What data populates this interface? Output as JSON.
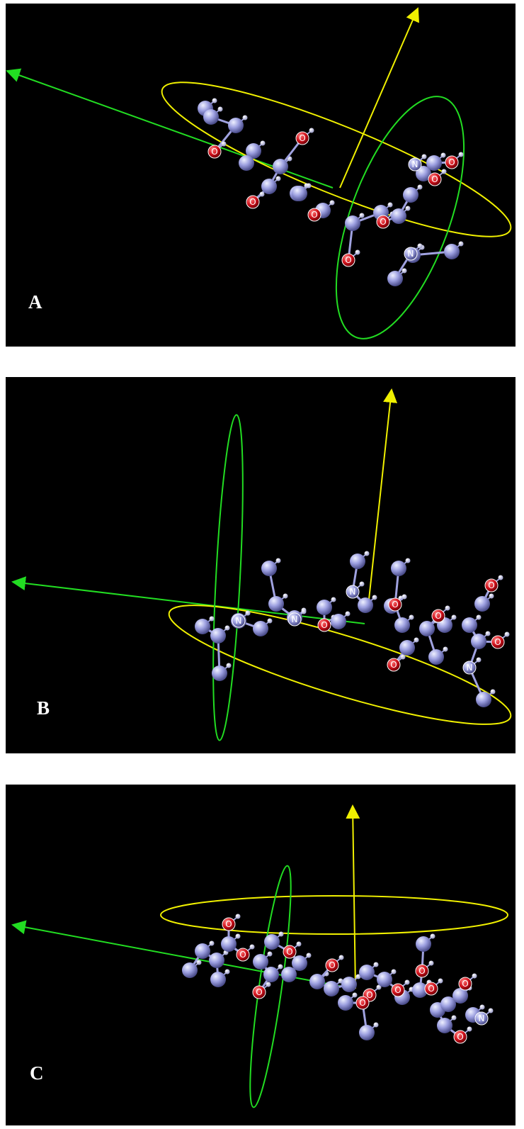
{
  "panels": [
    {
      "label": "A",
      "atoms": [
        "O",
        "O",
        "O",
        "O",
        "O",
        "O",
        "O",
        "O",
        "N",
        "N"
      ]
    },
    {
      "label": "B",
      "atoms": [
        "O",
        "O",
        "O",
        "O",
        "O",
        "O",
        "N",
        "N",
        "N",
        "N"
      ]
    },
    {
      "label": "C",
      "atoms": [
        "O",
        "O",
        "O",
        "O",
        "O",
        "O",
        "O",
        "O",
        "O",
        "O",
        "O",
        "O",
        "N"
      ]
    }
  ]
}
